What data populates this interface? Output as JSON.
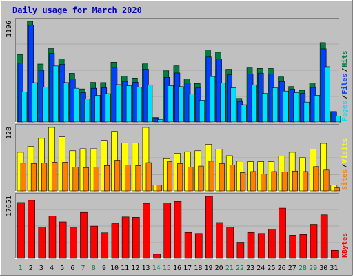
{
  "title": "Daily usage for March 2020",
  "colors": {
    "background": "#c0c0c0",
    "title": "#0000c0",
    "hits": "#008040",
    "files": "#0040ff",
    "pages": "#00e0ff",
    "visits": "#ffff00",
    "sites": "#ff8000",
    "kbytes": "#ff0000",
    "weekend_label": "#008040",
    "weekday_label": "#000000"
  },
  "chart_data": [
    {
      "type": "bar",
      "title": "",
      "ylim": [
        0,
        1196
      ],
      "ymax_label": "1196",
      "legend": [
        {
          "name": "Pages",
          "color": "#00e0ff"
        },
        {
          "name": "Files",
          "color": "#0040ff"
        },
        {
          "name": "Hits",
          "color": "#008040"
        }
      ],
      "separator": "/",
      "categories": [
        "1",
        "2",
        "3",
        "4",
        "5",
        "6",
        "7",
        "8",
        "9",
        "10",
        "11",
        "12",
        "13",
        "14",
        "15",
        "16",
        "17",
        "18",
        "19",
        "20",
        "21",
        "22",
        "23",
        "24",
        "25",
        "26",
        "27",
        "28",
        "29",
        "30",
        "31"
      ],
      "series": [
        {
          "name": "Hits",
          "values": [
            802,
            1196,
            688,
            872,
            748,
            578,
            392,
            470,
            468,
            710,
            544,
            522,
            690,
            52,
            608,
            666,
            512,
            457,
            856,
            828,
            626,
            280,
            650,
            636,
            635,
            535,
            420,
            376,
            463,
            943,
            124
          ]
        },
        {
          "name": "Files",
          "values": [
            700,
            1153,
            614,
            815,
            684,
            511,
            349,
            400,
            405,
            647,
            482,
            472,
            627,
            40,
            530,
            582,
            464,
            404,
            772,
            750,
            560,
            245,
            571,
            580,
            570,
            481,
            391,
            340,
            409,
            869,
            123
          ]
        },
        {
          "name": "Pages",
          "values": [
            355,
            466,
            413,
            665,
            468,
            400,
            276,
            315,
            335,
            443,
            430,
            412,
            440,
            27,
            430,
            419,
            333,
            258,
            540,
            461,
            405,
            204,
            440,
            338,
            404,
            367,
            348,
            236,
            316,
            656,
            68
          ]
        }
      ]
    },
    {
      "type": "bar",
      "title": "",
      "ylim": [
        0,
        128
      ],
      "ymax_label": "128",
      "legend": [
        {
          "name": "Sites",
          "color": "#ff8000"
        },
        {
          "name": "Visits",
          "color": "#ffff00"
        }
      ],
      "separator": "/",
      "categories": [
        "1",
        "2",
        "3",
        "4",
        "5",
        "6",
        "7",
        "8",
        "9",
        "10",
        "11",
        "12",
        "13",
        "14",
        "15",
        "16",
        "17",
        "18",
        "19",
        "20",
        "21",
        "22",
        "23",
        "24",
        "25",
        "26",
        "27",
        "28",
        "29",
        "30",
        "31"
      ],
      "series": [
        {
          "name": "Visits",
          "values": [
            78,
            90,
            106,
            128,
            109,
            81,
            85,
            85,
            102,
            120,
            97,
            97,
            128,
            12,
            65,
            76,
            79,
            81,
            94,
            84,
            71,
            60,
            59,
            59,
            59,
            70,
            78,
            67,
            84,
            96,
            12
          ]
        },
        {
          "name": "Sites",
          "values": [
            56,
            55,
            56,
            58,
            58,
            48,
            47,
            48,
            51,
            62,
            52,
            51,
            57,
            12,
            59,
            55,
            48,
            50,
            60,
            55,
            52,
            37,
            39,
            34,
            39,
            38,
            40,
            39,
            49,
            42,
            6
          ]
        }
      ]
    },
    {
      "type": "bar",
      "title": "",
      "ylim": [
        0,
        17651
      ],
      "ymax_label": "17651",
      "legend": [
        {
          "name": "KBytes",
          "color": "#ff0000"
        }
      ],
      "categories": [
        "1",
        "2",
        "3",
        "4",
        "5",
        "6",
        "7",
        "8",
        "9",
        "10",
        "11",
        "12",
        "13",
        "14",
        "15",
        "16",
        "17",
        "18",
        "19",
        "20",
        "21",
        "22",
        "23",
        "24",
        "25",
        "26",
        "27",
        "28",
        "29",
        "30",
        "31"
      ],
      "series": [
        {
          "name": "KBytes",
          "values": [
            15900,
            16500,
            8900,
            12100,
            10400,
            8700,
            13100,
            9200,
            7300,
            9900,
            11800,
            11700,
            15600,
            1200,
            15800,
            16200,
            7400,
            7100,
            17651,
            10200,
            8900,
            4400,
            7400,
            7100,
            8300,
            14300,
            6600,
            6800,
            9700,
            12400,
            2300
          ]
        }
      ]
    }
  ],
  "x_labels": {
    "days": [
      "1",
      "2",
      "3",
      "4",
      "5",
      "6",
      "7",
      "8",
      "9",
      "10",
      "11",
      "12",
      "13",
      "14",
      "15",
      "16",
      "17",
      "18",
      "19",
      "20",
      "21",
      "22",
      "23",
      "24",
      "25",
      "26",
      "27",
      "28",
      "29",
      "30",
      "31"
    ],
    "weekend_days": [
      "1",
      "7",
      "8",
      "14",
      "15",
      "21",
      "22",
      "28",
      "29"
    ]
  }
}
